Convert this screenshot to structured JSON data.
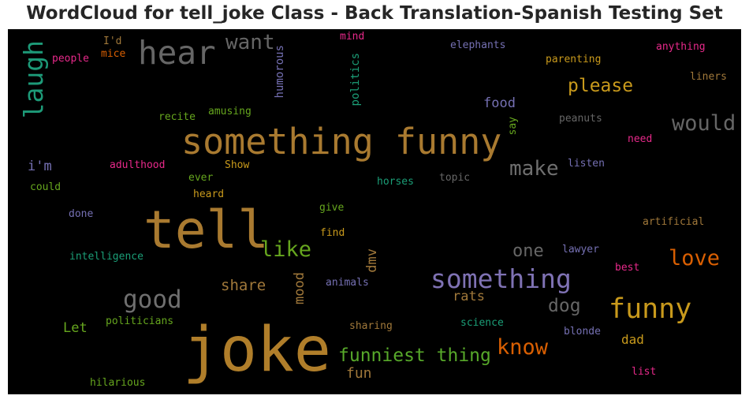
{
  "chart_data": {
    "type": "wordcloud",
    "title": "WordCloud for tell_joke Class - Back Translation-Spanish Testing Set",
    "background": "#000000",
    "words": [
      {
        "text": "joke",
        "color": "#b07e2a"
      },
      {
        "text": "tell",
        "color": "#a97a30"
      },
      {
        "text": "something funny",
        "color": "#a97a30"
      },
      {
        "text": "something",
        "color": "#7f72b4"
      },
      {
        "text": "funny",
        "color": "#c99a1c"
      },
      {
        "text": "hear",
        "color": "#666666"
      },
      {
        "text": "laugh",
        "color": "#1d9a78"
      },
      {
        "text": "good",
        "color": "#6f6f6f"
      },
      {
        "text": "funniest thing",
        "color": "#57a82a"
      },
      {
        "text": "know",
        "color": "#d95f02"
      },
      {
        "text": "love",
        "color": "#d95f02"
      },
      {
        "text": "would",
        "color": "#666666"
      },
      {
        "text": "make",
        "color": "#6f6f6f"
      },
      {
        "text": "like",
        "color": "#66a61e"
      },
      {
        "text": "want",
        "color": "#666666"
      },
      {
        "text": "please",
        "color": "#c99a1c"
      },
      {
        "text": "dog",
        "color": "#666666"
      },
      {
        "text": "one",
        "color": "#666666"
      },
      {
        "text": "share",
        "color": "#a0783a"
      },
      {
        "text": "rats",
        "color": "#a0783a"
      },
      {
        "text": "food",
        "color": "#7570b3"
      },
      {
        "text": "fun",
        "color": "#a0783a"
      },
      {
        "text": "mood",
        "color": "#a0783a"
      },
      {
        "text": "dmv",
        "color": "#a0783a"
      },
      {
        "text": "Let",
        "color": "#66a61e"
      },
      {
        "text": "i'm",
        "color": "#7570b3"
      },
      {
        "text": "dad",
        "color": "#c99a1c"
      },
      {
        "text": "humorous",
        "color": "#7570b3"
      },
      {
        "text": "politics",
        "color": "#1b9e77"
      },
      {
        "text": "mind",
        "color": "#e7298a"
      },
      {
        "text": "I'd",
        "color": "#a0783a"
      },
      {
        "text": "mice",
        "color": "#d95f02"
      },
      {
        "text": "people",
        "color": "#e7298a"
      },
      {
        "text": "elephants",
        "color": "#7570b3"
      },
      {
        "text": "anything",
        "color": "#e7298a"
      },
      {
        "text": "parenting",
        "color": "#c99a1c"
      },
      {
        "text": "liners",
        "color": "#a0783a"
      },
      {
        "text": "amusing",
        "color": "#66a61e"
      },
      {
        "text": "recite",
        "color": "#66a61e"
      },
      {
        "text": "peanuts",
        "color": "#666666"
      },
      {
        "text": "say",
        "color": "#66a61e"
      },
      {
        "text": "need",
        "color": "#e7298a"
      },
      {
        "text": "adulthood",
        "color": "#e7298a"
      },
      {
        "text": "Show",
        "color": "#c99a1c"
      },
      {
        "text": "listen",
        "color": "#7570b3"
      },
      {
        "text": "ever",
        "color": "#66a61e"
      },
      {
        "text": "topic",
        "color": "#666666"
      },
      {
        "text": "could",
        "color": "#66a61e"
      },
      {
        "text": "heard",
        "color": "#c99a1c"
      },
      {
        "text": "horses",
        "color": "#1b9e77"
      },
      {
        "text": "done",
        "color": "#7570b3"
      },
      {
        "text": "give",
        "color": "#66a61e"
      },
      {
        "text": "artificial",
        "color": "#a0783a"
      },
      {
        "text": "find",
        "color": "#c99a1c"
      },
      {
        "text": "intelligence",
        "color": "#1b9e77"
      },
      {
        "text": "lawyer",
        "color": "#7570b3"
      },
      {
        "text": "best",
        "color": "#e7298a"
      },
      {
        "text": "animals",
        "color": "#7570b3"
      },
      {
        "text": "politicians",
        "color": "#66a61e"
      },
      {
        "text": "sharing",
        "color": "#a0783a"
      },
      {
        "text": "science",
        "color": "#1b9e77"
      },
      {
        "text": "blonde",
        "color": "#7570b3"
      },
      {
        "text": "hilarious",
        "color": "#66a61e"
      },
      {
        "text": "list",
        "color": "#e7298a"
      }
    ]
  }
}
